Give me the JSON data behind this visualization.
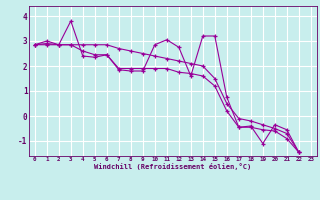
{
  "xlabel": "Windchill (Refroidissement éolien,°C)",
  "background_color": "#c8eeed",
  "grid_color": "#ffffff",
  "line_color": "#990099",
  "tick_color": "#660066",
  "xlim": [
    -0.5,
    23.5
  ],
  "ylim": [
    -1.6,
    4.4
  ],
  "yticks": [
    -1,
    0,
    1,
    2,
    3,
    4
  ],
  "xticks": [
    0,
    1,
    2,
    3,
    4,
    5,
    6,
    7,
    8,
    9,
    10,
    11,
    12,
    13,
    14,
    15,
    16,
    17,
    18,
    19,
    20,
    21,
    22,
    23
  ],
  "xtick_labels": [
    "0",
    "1",
    "2",
    "3",
    "4",
    "5",
    "6",
    "7",
    "8",
    "9",
    "10",
    "11",
    "12",
    "13",
    "14",
    "15",
    "16",
    "17",
    "18",
    "19",
    "20",
    "21",
    "22",
    "23"
  ],
  "series": [
    [
      2.85,
      3.0,
      2.85,
      3.8,
      2.4,
      2.35,
      2.45,
      1.85,
      1.8,
      1.8,
      2.85,
      3.05,
      2.75,
      1.6,
      3.2,
      3.2,
      0.75,
      -0.45,
      -0.4,
      -1.1,
      -0.35,
      -0.55,
      -1.45
    ],
    [
      2.85,
      2.9,
      2.85,
      2.85,
      2.85,
      2.85,
      2.85,
      2.7,
      2.6,
      2.5,
      2.4,
      2.3,
      2.2,
      2.1,
      2.0,
      1.5,
      0.5,
      -0.1,
      -0.2,
      -0.35,
      -0.5,
      -0.7,
      -1.45
    ],
    [
      2.85,
      2.85,
      2.85,
      2.85,
      2.6,
      2.45,
      2.45,
      1.9,
      1.9,
      1.9,
      1.9,
      1.9,
      1.75,
      1.7,
      1.6,
      1.2,
      0.2,
      -0.45,
      -0.45,
      -0.55,
      -0.6,
      -0.9,
      -1.45
    ]
  ]
}
